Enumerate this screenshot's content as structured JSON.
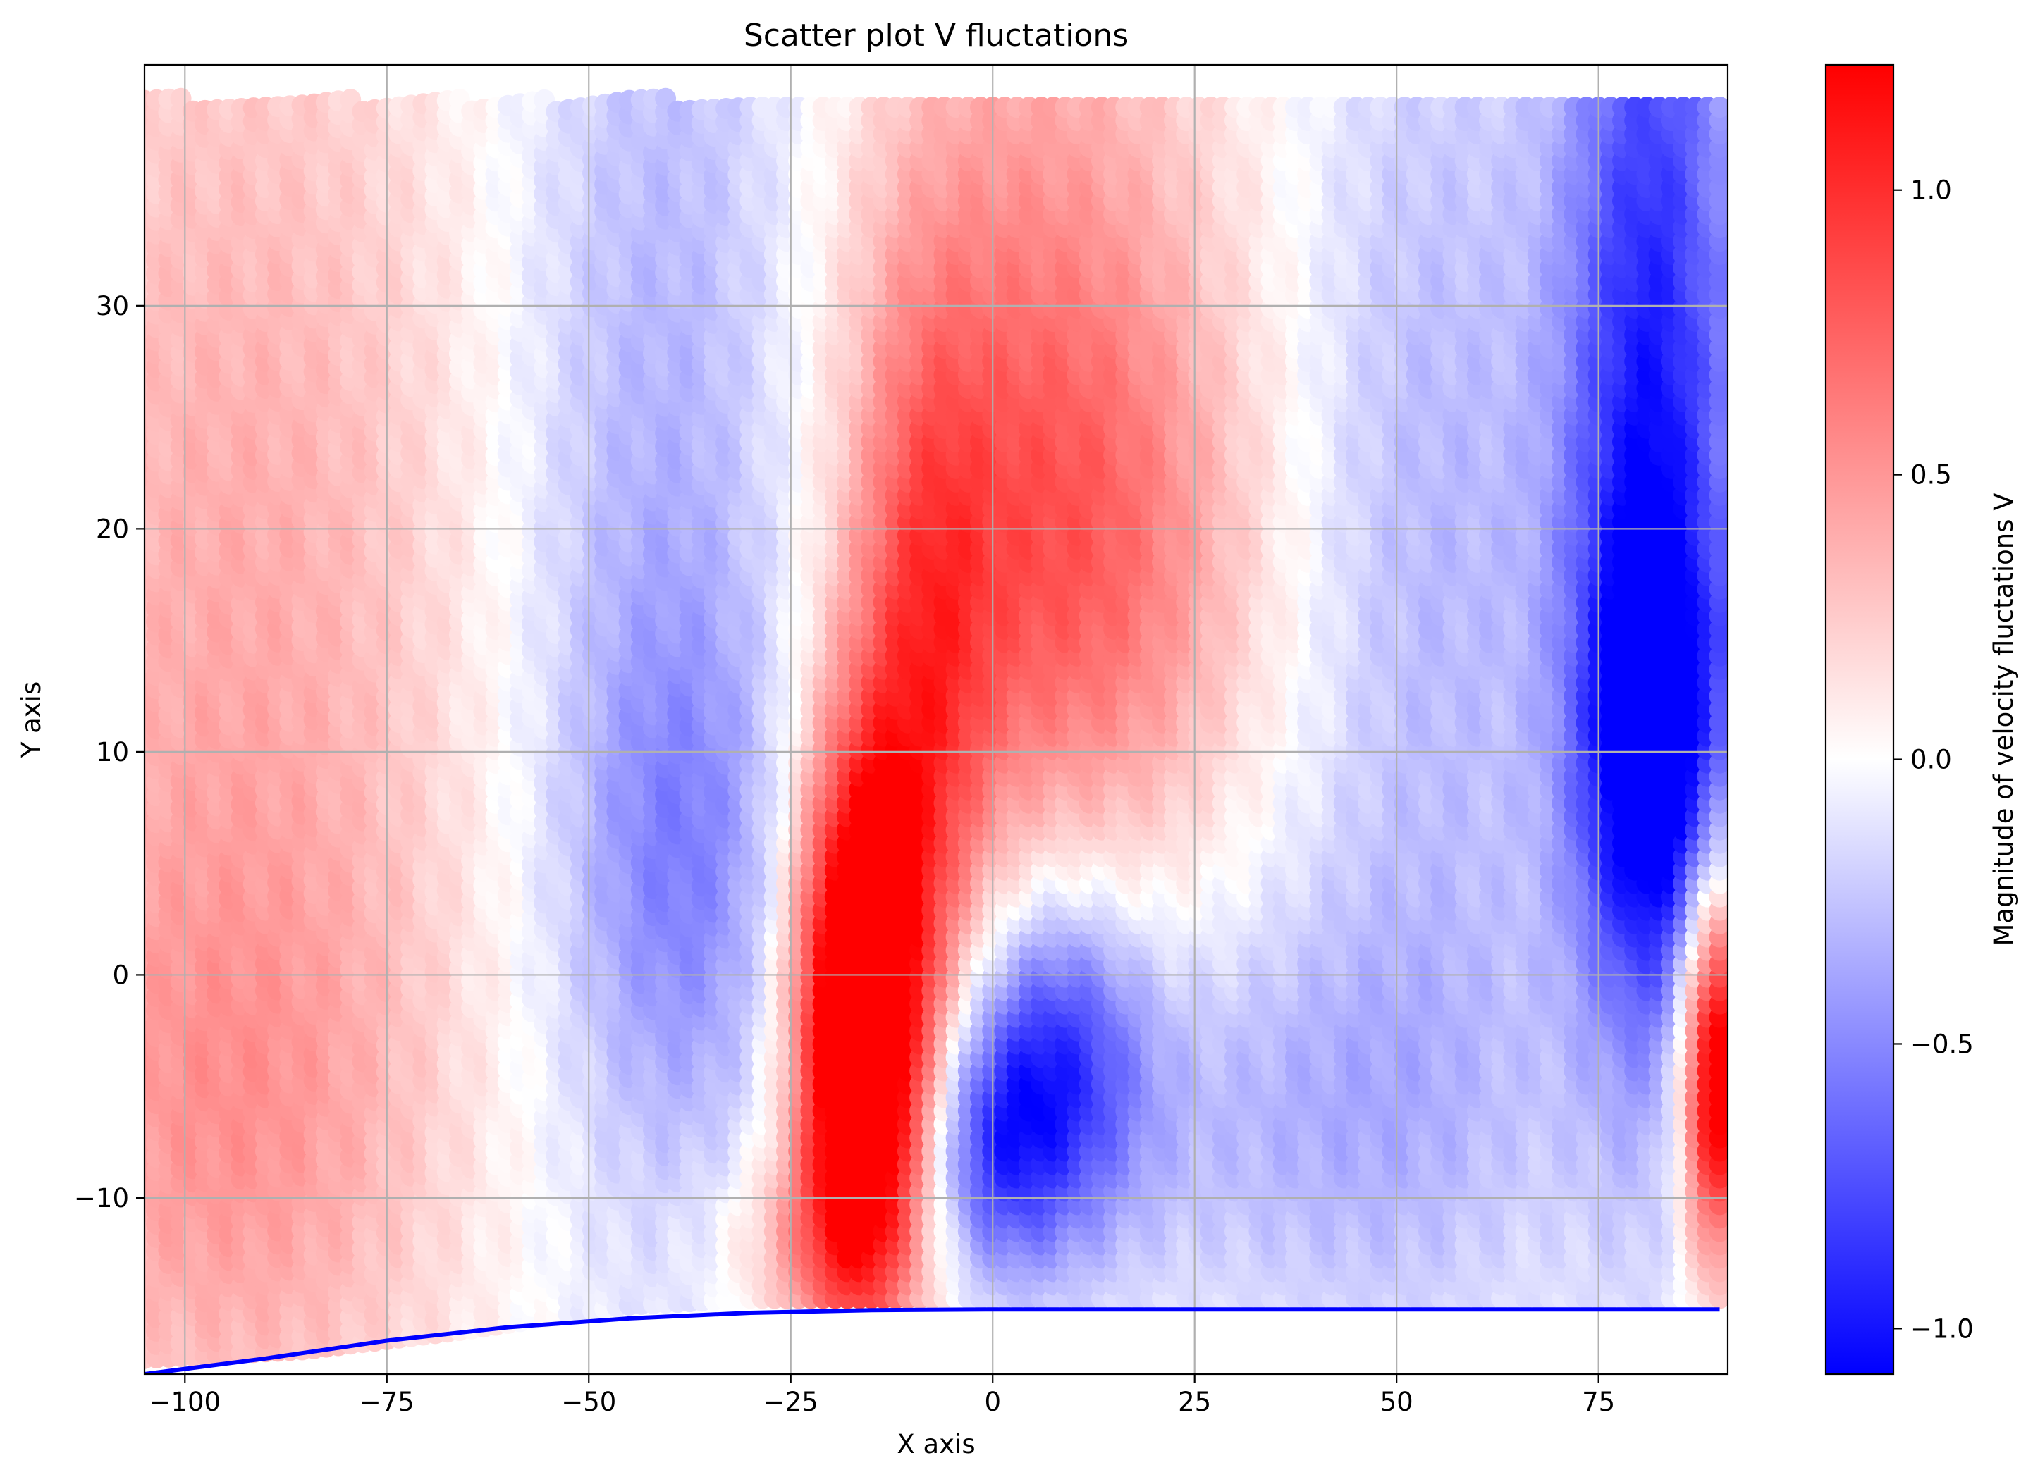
{
  "chart_data": {
    "type": "scatter",
    "title": "Scatter plot V fluctations",
    "xlabel": "X axis",
    "ylabel": "Y axis",
    "xlim": [
      -105,
      91
    ],
    "ylim": [
      -17.9,
      40.8
    ],
    "xticks": [
      -100,
      -75,
      -50,
      -25,
      0,
      25,
      50,
      75
    ],
    "xtick_labels": [
      "−100",
      "−75",
      "−50",
      "−25",
      "0",
      "25",
      "50",
      "75"
    ],
    "yticks": [
      -10,
      0,
      10,
      20,
      30
    ],
    "ytick_labels": [
      "−10",
      "0",
      "10",
      "20",
      "30"
    ],
    "grid": true,
    "scatter_field": {
      "x_range": [
        -105,
        90
      ],
      "y_range_top": 39.3,
      "bottom_edge": [
        {
          "x": -105,
          "y": -17.2
        },
        {
          "x": -85,
          "y": -16.8
        },
        {
          "x": -65,
          "y": -15.9
        },
        {
          "x": -45,
          "y": -14.8
        },
        {
          "x": -30,
          "y": -14.5
        },
        {
          "x": 90,
          "y": -14.5
        }
      ],
      "blobs": [
        {
          "x": -93,
          "y": 15,
          "sx": 22,
          "sy": 26,
          "v": 0.4
        },
        {
          "x": -95,
          "y": -7,
          "sx": 18,
          "sy": 9,
          "v": 0.25
        },
        {
          "x": -40,
          "y": 22,
          "sx": 14,
          "sy": 26,
          "v": -0.35
        },
        {
          "x": -38,
          "y": 5,
          "sx": 9,
          "sy": 8,
          "v": -0.3
        },
        {
          "x": -16,
          "y": -2.5,
          "sx": 5.5,
          "sy": 8.5,
          "v": 2.0
        },
        {
          "x": -8,
          "y": 12,
          "sx": 6,
          "sy": 12,
          "v": 0.6
        },
        {
          "x": 5,
          "y": 25,
          "sx": 17,
          "sy": 16,
          "v": 0.6
        },
        {
          "x": 12,
          "y": 18,
          "sx": 14,
          "sy": 8,
          "v": 0.3
        },
        {
          "x": 8,
          "y": -4,
          "sx": 8,
          "sy": 5.5,
          "v": -0.85
        },
        {
          "x": 0,
          "y": -8,
          "sx": 6,
          "sy": 4,
          "v": -0.55
        },
        {
          "x": 35,
          "y": -6,
          "sx": 22,
          "sy": 7,
          "v": -0.3
        },
        {
          "x": 55,
          "y": 20,
          "sx": 12,
          "sy": 22,
          "v": -0.3
        },
        {
          "x": 82,
          "y": 25,
          "sx": 8,
          "sy": 20,
          "v": -0.95
        },
        {
          "x": 82,
          "y": 10,
          "sx": 6,
          "sy": 7,
          "v": -0.8
        },
        {
          "x": 90,
          "y": -4,
          "sx": 3,
          "sy": 6,
          "v": 1.6
        },
        {
          "x": -22,
          "y": -12,
          "sx": 8,
          "sy": 3,
          "v": 0.35
        }
      ]
    },
    "wall_curve": {
      "color": "#0000ff",
      "points": [
        {
          "x": -105,
          "y": -17.9
        },
        {
          "x": -90,
          "y": -17.2
        },
        {
          "x": -75,
          "y": -16.4
        },
        {
          "x": -60,
          "y": -15.8
        },
        {
          "x": -45,
          "y": -15.4
        },
        {
          "x": -30,
          "y": -15.15
        },
        {
          "x": -15,
          "y": -15.03
        },
        {
          "x": 0,
          "y": -15.0
        },
        {
          "x": 90,
          "y": -15.0
        }
      ]
    }
  },
  "colorbar": {
    "label": "Magnitude of velocity fluctations V",
    "range": [
      -1.08,
      1.22
    ],
    "colormap": [
      "#0000ff",
      "#ffffff",
      "#ff0000"
    ],
    "ticks": [
      1.0,
      0.5,
      0.0,
      -0.5,
      -1.0
    ],
    "tick_labels": [
      "1.0",
      "0.5",
      "0.0",
      "−0.5",
      "−1.0"
    ]
  }
}
